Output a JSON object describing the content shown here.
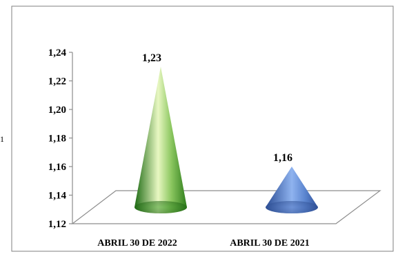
{
  "side_fragment": "1",
  "chart_data": {
    "type": "bar",
    "shape": "cone",
    "title": "",
    "xlabel": "",
    "ylabel": "",
    "categories": [
      "ABRIL 30 DE 2022",
      "ABRIL 30 DE 2021"
    ],
    "values": [
      1.23,
      1.16
    ],
    "value_labels": [
      "1,23",
      "1,16"
    ],
    "ylim": [
      1.12,
      1.24
    ],
    "yticks": [
      1.12,
      1.14,
      1.16,
      1.18,
      1.2,
      1.22,
      1.24
    ],
    "ytick_labels": [
      "1,12",
      "1,14",
      "1,16",
      "1,18",
      "1,20",
      "1,22",
      "1,24"
    ],
    "colors": [
      "#2f7d1f",
      "#3d65b8"
    ],
    "grid": false,
    "legend": "none"
  }
}
